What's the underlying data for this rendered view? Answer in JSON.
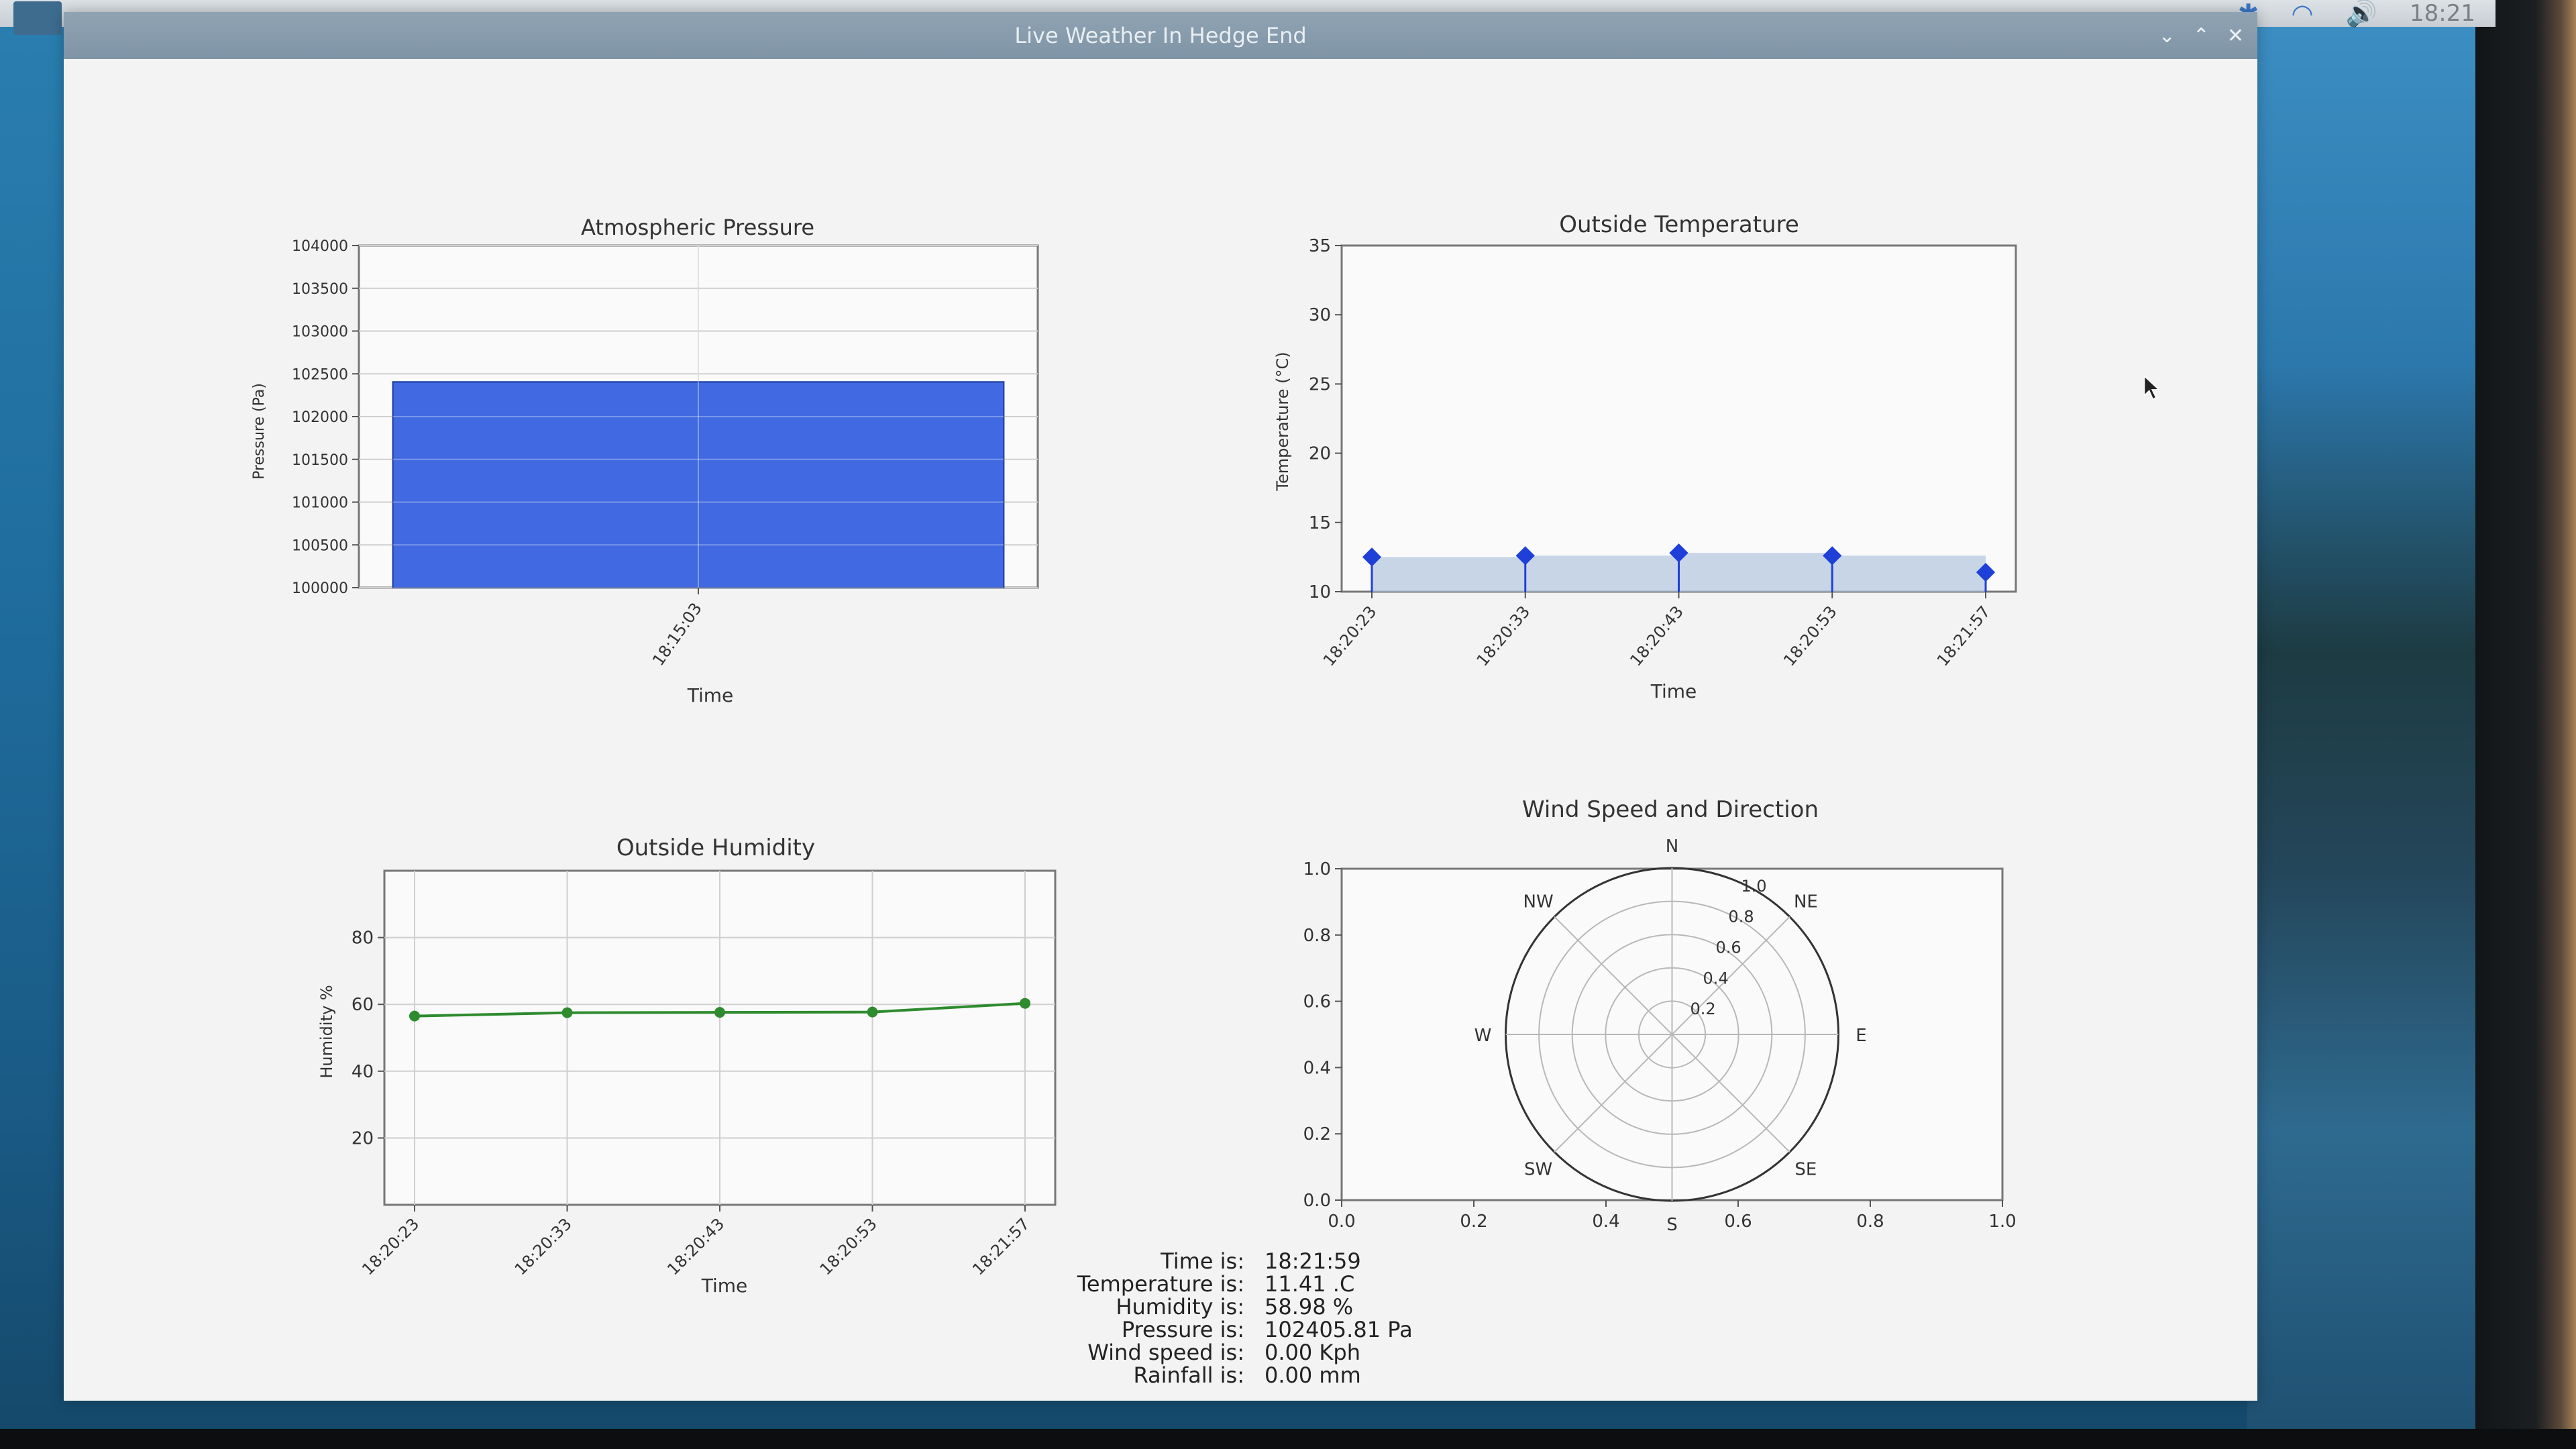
{
  "window": {
    "title": "Live Weather In Hedge End",
    "controls": {
      "minimize": "⌄",
      "maximize": "⌃",
      "close": "✕"
    }
  },
  "panel": {
    "clock": "18:21",
    "tray_icons": [
      "bluetooth-icon",
      "wifi-icon",
      "volume-icon"
    ]
  },
  "colors": {
    "bar": "#4169e1",
    "temperature": "#1f3fd9",
    "temperature_fill": "#b0c4de",
    "humidity": "#2e8b2e"
  },
  "readout": {
    "rows": [
      {
        "label": "Time is:",
        "value": "18:21:59"
      },
      {
        "label": "Temperature is:",
        "value": "11.41 .C"
      },
      {
        "label": "Humidity is:",
        "value": "58.98 %"
      },
      {
        "label": "Pressure is:",
        "value": "102405.81 Pa"
      },
      {
        "label": "Wind speed is:",
        "value": "0.00 Kph"
      },
      {
        "label": "Rainfall is:",
        "value": "0.00 mm"
      }
    ]
  },
  "chart_data": [
    {
      "id": "pressure",
      "type": "bar",
      "title": "Atmospheric Pressure",
      "xlabel": "Time",
      "ylabel": "Pressure (Pa)",
      "categories": [
        "18:15:03"
      ],
      "values": [
        102405.81
      ],
      "ylim": [
        100000,
        104000
      ],
      "yticks": [
        100000,
        100500,
        101000,
        101500,
        102000,
        102500,
        103000,
        103500,
        104000
      ],
      "grid": true
    },
    {
      "id": "temperature",
      "type": "line",
      "title": "Outside Temperature",
      "xlabel": "Time",
      "ylabel": "Temperature (°C)",
      "categories": [
        "18:20:23",
        "18:20:33",
        "18:20:43",
        "18:20:53",
        "18:21:57"
      ],
      "values": [
        12.5,
        12.6,
        12.8,
        12.6,
        11.4
      ],
      "ylim": [
        10,
        35
      ],
      "yticks": [
        10,
        15,
        20,
        25,
        30,
        35
      ],
      "grid": false
    },
    {
      "id": "humidity",
      "type": "line",
      "title": "Outside Humidity",
      "xlabel": "Time",
      "ylabel": "Humidity %",
      "categories": [
        "18:20:23",
        "18:20:33",
        "18:20:43",
        "18:20:53",
        "18:21:57"
      ],
      "values": [
        56.5,
        57.5,
        57.6,
        57.7,
        60.3
      ],
      "ylim": [
        0,
        100
      ],
      "yticks": [
        20,
        40,
        60,
        80
      ],
      "grid": true
    },
    {
      "id": "wind",
      "type": "scatter",
      "title": "Wind Speed and Direction",
      "xlim": [
        0,
        1
      ],
      "ylim": [
        0,
        1
      ],
      "xticks": [
        "0.0",
        "0.2",
        "0.4",
        "0.6",
        "0.8",
        "1.0"
      ],
      "yticks": [
        "0.0",
        "0.2",
        "0.4",
        "0.6",
        "0.8",
        "1.0"
      ],
      "polar": {
        "directions": [
          "N",
          "NE",
          "E",
          "SE",
          "S",
          "SW",
          "W",
          "NW"
        ],
        "rticks": [
          "0.2",
          "0.4",
          "0.6",
          "0.8",
          "1.0"
        ],
        "speed": 0.0
      }
    }
  ]
}
